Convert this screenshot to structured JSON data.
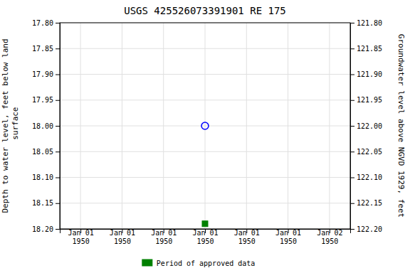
{
  "chart_data": {
    "type": "scatter",
    "title": "USGS 425526073391901 RE 175",
    "ylabel": "Depth to water level, feet below land\n surface",
    "y2label": "Groundwater level above NGVD 1929, feet",
    "categories": [
      "Jan 01\n1950",
      "Jan 01\n1950",
      "Jan 01\n1950",
      "Jan 01\n1950",
      "Jan 01\n1950",
      "Jan 01\n1950",
      "Jan 02\n1950"
    ],
    "series": [
      {
        "color": "blue",
        "marker": "circle-open",
        "values": [
          null,
          null,
          null,
          18.0,
          null,
          null,
          null
        ]
      },
      {
        "name": "Period of approved data",
        "color": "green",
        "marker": "square",
        "values": [
          null,
          null,
          null,
          18.19,
          null,
          null,
          null
        ]
      }
    ],
    "ylim": [
      18.2,
      17.8
    ],
    "yticks": [
      {
        "value": 17.8,
        "label": "17.80"
      },
      17.85,
      {
        "value": 17.9,
        "label": "17.90"
      },
      17.95,
      {
        "value": 18.0,
        "label": "18.00"
      },
      18.05,
      {
        "value": 18.1,
        "label": "18.10"
      },
      18.15,
      {
        "value": 18.2,
        "label": "18.20"
      }
    ],
    "y2lim": [
      122.2,
      121.8
    ],
    "y2ticks": [
      {
        "value": 122.2,
        "label": "122.20"
      },
      122.15,
      {
        "value": 122.1,
        "label": "122.10"
      },
      122.05,
      {
        "value": 122.0,
        "label": "122.00"
      },
      121.95,
      {
        "value": 121.9,
        "label": "121.90"
      },
      121.85,
      {
        "value": 121.8,
        "label": "121.80"
      }
    ],
    "grid": true,
    "legend": "bottom"
  }
}
